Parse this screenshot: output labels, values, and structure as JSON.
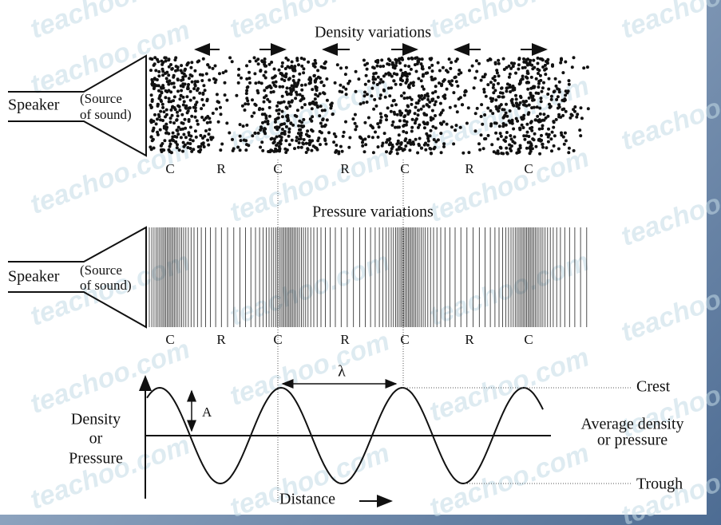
{
  "watermark": "teachoo.com",
  "density_panel": {
    "title": "Density variations",
    "speaker": "Speaker",
    "source": [
      "(Source",
      "of sound)"
    ],
    "labels": [
      "C",
      "R",
      "C",
      "R",
      "C",
      "R",
      "C"
    ]
  },
  "pressure_panel": {
    "title": "Pressure variations",
    "speaker": "Speaker",
    "source": [
      "(Source",
      "of sound)"
    ],
    "labels": [
      "C",
      "R",
      "C",
      "R",
      "C",
      "R",
      "C"
    ]
  },
  "graph": {
    "y_label": [
      "Density",
      "or",
      "Pressure"
    ],
    "amplitude": "A",
    "wavelength": "λ",
    "crest": "Crest",
    "average": [
      "Average density",
      "or pressure"
    ],
    "trough": "Trough",
    "x_label": "Distance"
  }
}
